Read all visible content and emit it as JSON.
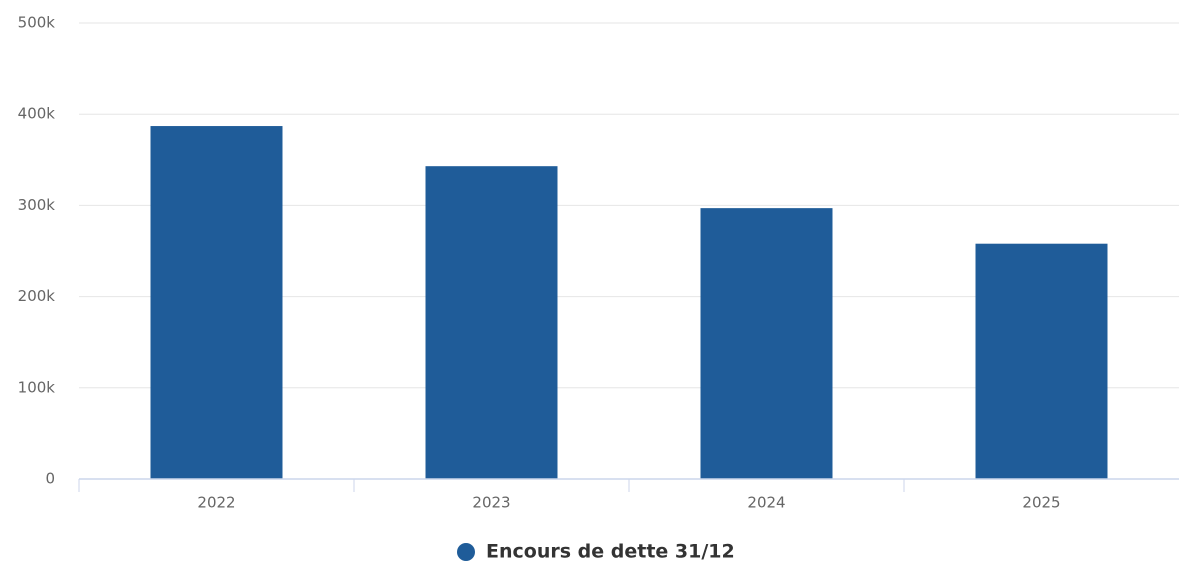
{
  "chart_data": {
    "type": "bar",
    "categories": [
      "2022",
      "2023",
      "2024",
      "2025"
    ],
    "series": [
      {
        "name": "Encours de dette 31/12",
        "color": "#1f5c99",
        "values": [
          387000,
          343000,
          297000,
          258000
        ]
      }
    ],
    "ylim": [
      0,
      500000
    ],
    "yticks": [
      0,
      {
        "value": 100000,
        "label": "100k"
      },
      {
        "value": 200000,
        "label": "200k"
      },
      {
        "value": 300000,
        "label": "300k"
      },
      {
        "value": 400000,
        "label": "400k"
      },
      {
        "value": 500000,
        "label": "500k"
      }
    ],
    "grid": true,
    "legend": "bottom"
  }
}
